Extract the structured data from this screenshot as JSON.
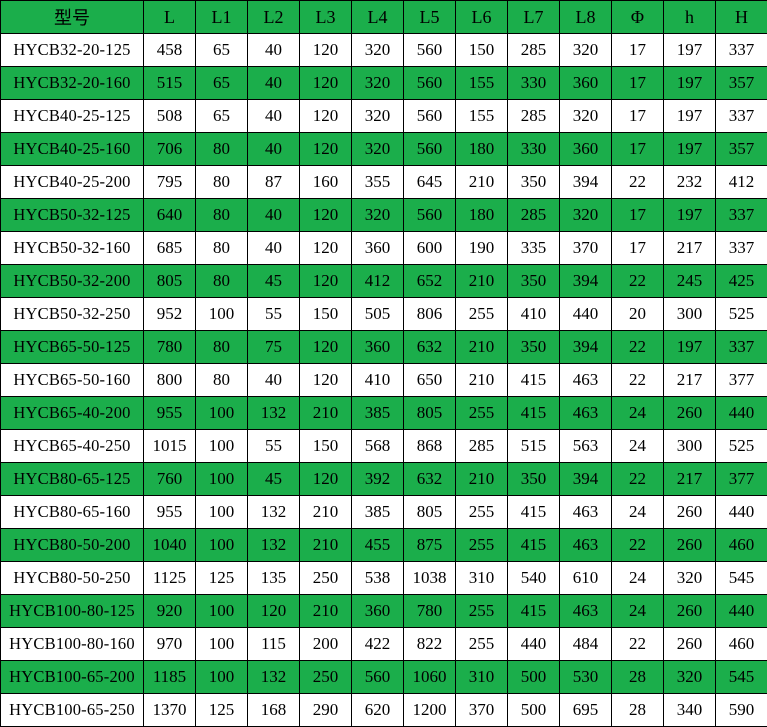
{
  "table": {
    "headers": [
      "型号",
      "L",
      "L1",
      "L2",
      "L3",
      "L4",
      "L5",
      "L6",
      "L7",
      "L8",
      "Φ",
      "h",
      "H"
    ],
    "rows": [
      {
        "model": "HYCB32-20-125",
        "values": [
          458,
          65,
          40,
          120,
          320,
          560,
          150,
          285,
          320,
          17,
          197,
          337
        ]
      },
      {
        "model": "HYCB32-20-160",
        "values": [
          515,
          65,
          40,
          120,
          320,
          560,
          155,
          330,
          360,
          17,
          197,
          357
        ]
      },
      {
        "model": "HYCB40-25-125",
        "values": [
          508,
          65,
          40,
          120,
          320,
          560,
          155,
          285,
          320,
          17,
          197,
          337
        ]
      },
      {
        "model": "HYCB40-25-160",
        "values": [
          706,
          80,
          40,
          120,
          320,
          560,
          180,
          330,
          360,
          17,
          197,
          357
        ]
      },
      {
        "model": "HYCB40-25-200",
        "values": [
          795,
          80,
          87,
          160,
          355,
          645,
          210,
          350,
          394,
          22,
          232,
          412
        ]
      },
      {
        "model": "HYCB50-32-125",
        "values": [
          640,
          80,
          40,
          120,
          320,
          560,
          180,
          285,
          320,
          17,
          197,
          337
        ]
      },
      {
        "model": "HYCB50-32-160",
        "values": [
          685,
          80,
          40,
          120,
          360,
          600,
          190,
          335,
          370,
          17,
          217,
          337
        ]
      },
      {
        "model": "HYCB50-32-200",
        "values": [
          805,
          80,
          45,
          120,
          412,
          652,
          210,
          350,
          394,
          22,
          245,
          425
        ]
      },
      {
        "model": "HYCB50-32-250",
        "values": [
          952,
          100,
          55,
          150,
          505,
          806,
          255,
          410,
          440,
          20,
          300,
          525
        ]
      },
      {
        "model": "HYCB65-50-125",
        "values": [
          780,
          80,
          75,
          120,
          360,
          632,
          210,
          350,
          394,
          22,
          197,
          337
        ]
      },
      {
        "model": "HYCB65-50-160",
        "values": [
          800,
          80,
          40,
          120,
          410,
          650,
          210,
          415,
          463,
          22,
          217,
          377
        ]
      },
      {
        "model": "HYCB65-40-200",
        "values": [
          955,
          100,
          132,
          210,
          385,
          805,
          255,
          415,
          463,
          24,
          260,
          440
        ]
      },
      {
        "model": "HYCB65-40-250",
        "values": [
          1015,
          100,
          55,
          150,
          568,
          868,
          285,
          515,
          563,
          24,
          300,
          525
        ]
      },
      {
        "model": "HYCB80-65-125",
        "values": [
          760,
          100,
          45,
          120,
          392,
          632,
          210,
          350,
          394,
          22,
          217,
          377
        ]
      },
      {
        "model": "HYCB80-65-160",
        "values": [
          955,
          100,
          132,
          210,
          385,
          805,
          255,
          415,
          463,
          24,
          260,
          440
        ]
      },
      {
        "model": "HYCB80-50-200",
        "values": [
          1040,
          100,
          132,
          210,
          455,
          875,
          255,
          415,
          463,
          22,
          260,
          460
        ]
      },
      {
        "model": "HYCB80-50-250",
        "values": [
          1125,
          125,
          135,
          250,
          538,
          1038,
          310,
          540,
          610,
          24,
          320,
          545
        ]
      },
      {
        "model": "HYCB100-80-125",
        "values": [
          920,
          100,
          120,
          210,
          360,
          780,
          255,
          415,
          463,
          24,
          260,
          440
        ]
      },
      {
        "model": "HYCB100-80-160",
        "values": [
          970,
          100,
          115,
          200,
          422,
          822,
          255,
          440,
          484,
          22,
          260,
          460
        ]
      },
      {
        "model": "HYCB100-65-200",
        "values": [
          1185,
          100,
          132,
          250,
          560,
          1060,
          310,
          500,
          530,
          28,
          320,
          545
        ]
      },
      {
        "model": "HYCB100-65-250",
        "values": [
          1370,
          125,
          168,
          290,
          620,
          1200,
          370,
          500,
          695,
          28,
          340,
          590
        ]
      }
    ]
  },
  "colors": {
    "row_green": "#1BAE4B",
    "row_white": "#FFFFFF",
    "border": "#000000",
    "text": "#000000"
  }
}
